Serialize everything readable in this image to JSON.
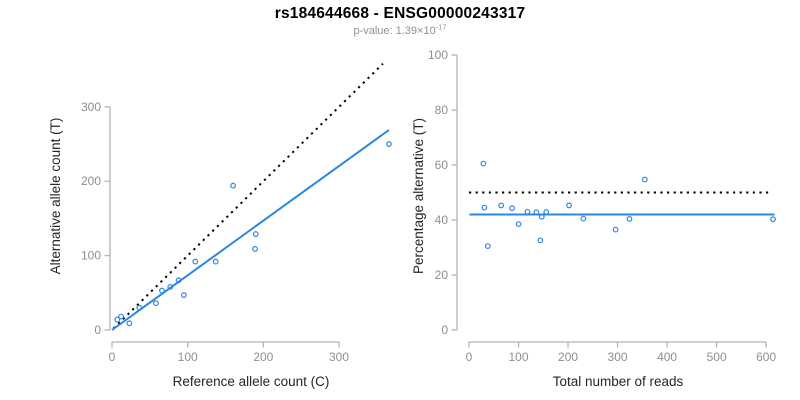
{
  "header": {
    "title": "rs184644668 - ENSG00000243317",
    "subtitle_base": "p-value: 1.39×10",
    "subtitle_exponent": "-17"
  },
  "colors": {
    "points": "#2b87e0",
    "fit_line": "#2b87e0",
    "reference_line": "#000000",
    "axis_line": "#b3b3b3",
    "tick_label": "#8f8f8f",
    "axis_title": "#262626",
    "title": "#000000",
    "subtitle": "#8f8f8f",
    "background": "#ffffff"
  },
  "chart_data": [
    {
      "name": "allele-count-scatter",
      "type": "scatter",
      "xlabel": "Reference allele count (C)",
      "ylabel": "Alternative allele count (T)",
      "xlim": [
        0,
        370
      ],
      "ylim": [
        0,
        363
      ],
      "x_ticks": [
        0,
        100,
        200,
        300
      ],
      "y_ticks": [
        0,
        100,
        200,
        300
      ],
      "grid": false,
      "legend": false,
      "points": [
        [
          7,
          14
        ],
        [
          12,
          18
        ],
        [
          23,
          9
        ],
        [
          36,
          30
        ],
        [
          58,
          36
        ],
        [
          66,
          53
        ],
        [
          77,
          58
        ],
        [
          88,
          67
        ],
        [
          95,
          47
        ],
        [
          110,
          92
        ],
        [
          137,
          92
        ],
        [
          160,
          194
        ],
        [
          189,
          109
        ],
        [
          190,
          129
        ],
        [
          366,
          250
        ]
      ],
      "lines": [
        {
          "name": "identity-line",
          "style": "dotted",
          "color": "#000000",
          "x1": 2,
          "y1": 2,
          "x2": 358,
          "y2": 358
        },
        {
          "name": "fit-line",
          "style": "solid",
          "color": "#2b87e0",
          "x1": 0,
          "y1": 0,
          "x2": 366,
          "y2": 269
        }
      ]
    },
    {
      "name": "percentage-alternative-scatter",
      "type": "scatter",
      "xlabel": "Total number of reads",
      "ylabel": "Percentage alternative (T)",
      "xlim": [
        0,
        628
      ],
      "ylim": [
        0,
        100
      ],
      "x_ticks": [
        0,
        100,
        200,
        300,
        400,
        500,
        600
      ],
      "y_ticks": [
        0,
        20,
        40,
        60,
        80,
        100
      ],
      "grid": false,
      "legend": false,
      "points": [
        [
          29,
          60.5
        ],
        [
          31,
          44.5
        ],
        [
          38,
          30.5
        ],
        [
          65,
          45.3
        ],
        [
          87,
          44.3
        ],
        [
          100,
          38.5
        ],
        [
          118,
          43
        ],
        [
          136,
          42.8
        ],
        [
          144,
          32.6
        ],
        [
          147,
          41.2
        ],
        [
          156,
          42.9
        ],
        [
          202,
          45.3
        ],
        [
          231,
          40.5
        ],
        [
          296,
          36.5
        ],
        [
          324,
          40.4
        ],
        [
          355,
          54.7
        ],
        [
          614,
          40.3
        ]
      ],
      "lines": [
        {
          "name": "expected-50pct-line",
          "style": "dotted",
          "color": "#000000",
          "x1": 0,
          "y1": 50,
          "x2": 608,
          "y2": 50
        },
        {
          "name": "fit-line",
          "style": "solid",
          "color": "#2b87e0",
          "x1": 1,
          "y1": 42,
          "x2": 617,
          "y2": 42
        }
      ]
    }
  ]
}
